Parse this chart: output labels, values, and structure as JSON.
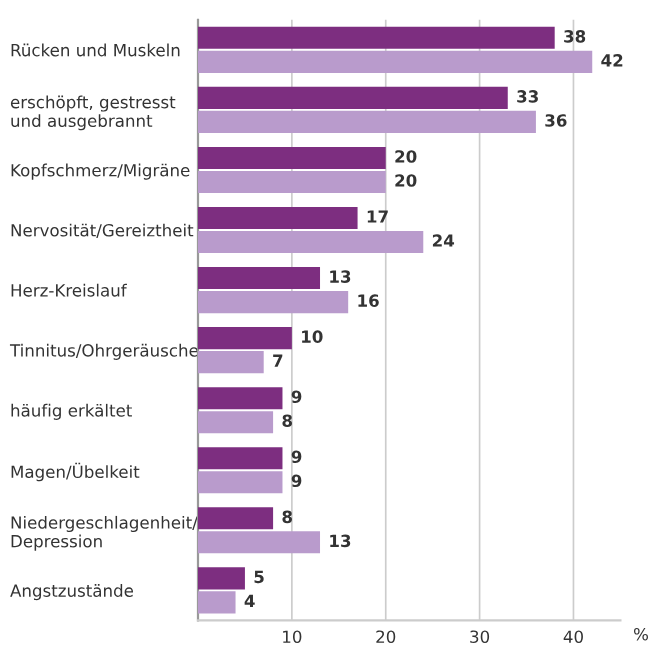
{
  "chart_data": {
    "type": "bar",
    "orientation": "horizontal",
    "xlabel": "%",
    "categories": [
      "Rücken und Muskeln",
      "erschöpft, gestresst\nund ausgebrannt",
      "Kopfschmerz/Migräne",
      "Nervosität/Gereiztheit",
      "Herz-Kreislauf",
      "Tinnitus/Ohrgeräusche",
      "häufig erkältet",
      "Magen/Übelkeit",
      "Niedergeschlagenheit/\nDepression",
      "Angstzustände"
    ],
    "series": [
      {
        "color": "#7d2e80",
        "values": [
          38,
          33,
          20,
          17,
          13,
          10,
          9,
          9,
          8,
          5
        ]
      },
      {
        "color": "#b99bcc",
        "values": [
          42,
          36,
          20,
          24,
          16,
          7,
          8,
          9,
          13,
          4
        ]
      }
    ],
    "xlim": [
      0,
      45
    ],
    "xticks": [
      10,
      20,
      30,
      40
    ],
    "grid": "x",
    "data_labels": true
  }
}
